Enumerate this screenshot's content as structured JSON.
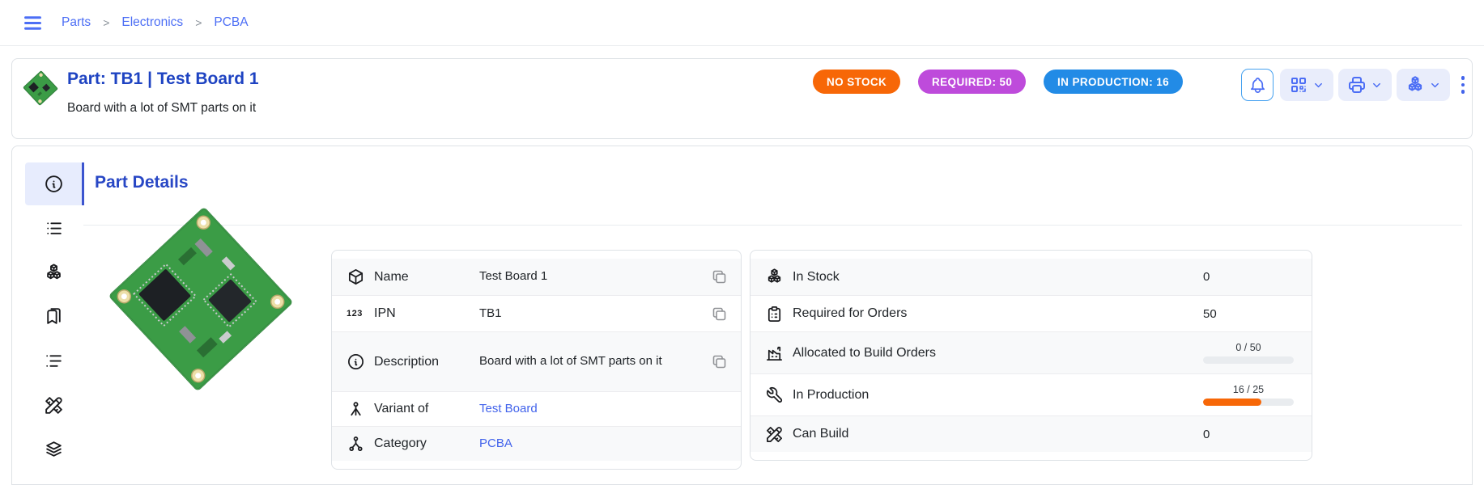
{
  "colors": {
    "primary_indigo": "#4c6ef5",
    "title_blue": "#1e43c2",
    "link_blue": "#4263eb",
    "row_stripe": "#f8f9fa",
    "card_border": "#dee2e6",
    "progress_track": "#e9ecef"
  },
  "breadcrumb": {
    "menu_icon": "menu-icon",
    "separator": ">",
    "items": [
      "Parts",
      "Electronics",
      "PCBA"
    ]
  },
  "header": {
    "title": "Part: TB1 | Test Board 1",
    "subtitle": "Board with a lot of SMT parts on it",
    "badges": [
      {
        "label": "NO STOCK",
        "color": "#f76707"
      },
      {
        "label": "REQUIRED: 50",
        "color": "#be4bdb"
      },
      {
        "label": "IN PRODUCTION: 16",
        "color": "#228be6"
      }
    ],
    "actions": [
      {
        "icon": "bell-icon"
      },
      {
        "icon": "qrcode-icon",
        "has_dropdown": true
      },
      {
        "icon": "printer-icon",
        "has_dropdown": true
      },
      {
        "icon": "packages-icon",
        "has_dropdown": true
      },
      {
        "icon": "dots-vertical-icon"
      }
    ]
  },
  "sidebar": {
    "tabs": [
      {
        "icon": "info-circle-icon",
        "active": true
      },
      {
        "icon": "list-icon",
        "active": false
      },
      {
        "icon": "packages-icon",
        "active": false
      },
      {
        "icon": "bookmarks-icon",
        "active": false
      },
      {
        "icon": "list-details-icon",
        "active": false
      },
      {
        "icon": "tools-icon",
        "active": false
      },
      {
        "icon": "stack-icon",
        "active": false
      }
    ]
  },
  "section": {
    "title": "Part Details"
  },
  "part_details": {
    "rows": [
      {
        "icon": "box-icon",
        "label": "Name",
        "value": "Test Board 1",
        "copy": true
      },
      {
        "icon": "numbers-123-icon",
        "label": "IPN",
        "value": "TB1",
        "copy": true
      },
      {
        "icon": "info-circle-icon",
        "label": "Description",
        "value": "Board with a lot of SMT parts on it",
        "copy": true
      },
      {
        "icon": "versions-icon",
        "label": "Variant of",
        "value": "Test Board",
        "link": true
      },
      {
        "icon": "sitemap-icon",
        "label": "Category",
        "value": "PCBA",
        "link": true
      }
    ]
  },
  "part_stock": {
    "rows": [
      {
        "icon": "packages-icon",
        "label": "In Stock",
        "value": "0"
      },
      {
        "icon": "clipboard-list-icon",
        "label": "Required for Orders",
        "value": "50"
      },
      {
        "icon": "building-factory-icon",
        "label": "Allocated to Build Orders",
        "value": "0 / 50",
        "progress": {
          "current": 0,
          "max": 50,
          "pct": 0,
          "color": "#f76707"
        }
      },
      {
        "icon": "tool-icon",
        "label": "In Production",
        "value": "16 / 25",
        "progress": {
          "current": 16,
          "max": 25,
          "pct": 64,
          "color": "#f76707"
        }
      },
      {
        "icon": "tools-icon",
        "label": "Can Build",
        "value": "0"
      }
    ]
  }
}
